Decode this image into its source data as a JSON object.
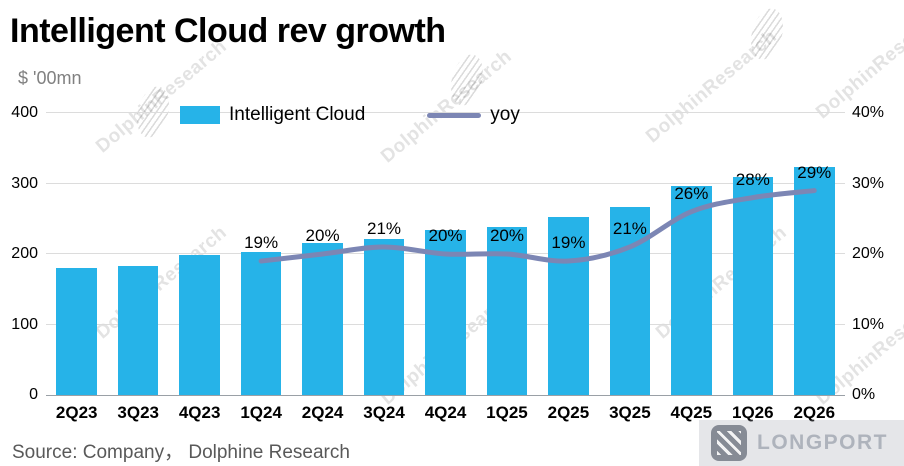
{
  "header": {
    "title": "Intelligent Cloud rev growth",
    "unit_label": "$ '00mn"
  },
  "legend": {
    "bar_label": "Intelligent Cloud",
    "line_label": "yoy"
  },
  "footer": {
    "source": "Source:  Company，  Dolphine Research",
    "brand": "LONGPORT"
  },
  "watermark": {
    "text": "DolphinResearch"
  },
  "colors": {
    "bar": "#26b3e8",
    "line": "#7c86b4",
    "grid": "#dcdcdc",
    "axis": "#9aa0a6"
  },
  "chart_data": {
    "type": "bar+line",
    "title": "Intelligent Cloud rev growth",
    "ylabel_left": "$ '00mn",
    "legend_position": "top",
    "grid": true,
    "categories": [
      "2Q23",
      "3Q23",
      "4Q23",
      "1Q24",
      "2Q24",
      "3Q24",
      "4Q24",
      "1Q25",
      "2Q25",
      "3Q25",
      "4Q25",
      "1Q26",
      "2Q26"
    ],
    "series": [
      {
        "name": "Intelligent Cloud",
        "type": "bar",
        "axis": "left",
        "values": [
          180,
          183,
          198,
          203,
          216,
          221,
          234,
          239,
          253,
          267,
          297,
          309,
          324
        ]
      },
      {
        "name": "yoy",
        "type": "line",
        "axis": "right",
        "values": [
          null,
          null,
          null,
          19,
          20,
          21,
          20,
          20,
          19,
          21,
          26,
          28,
          29
        ],
        "labels": [
          "",
          "",
          "",
          "19%",
          "20%",
          "21%",
          "20%",
          "20%",
          "19%",
          "21%",
          "26%",
          "28%",
          "29%"
        ]
      }
    ],
    "left_axis": {
      "min": 0,
      "max": 400,
      "ticks": [
        "0",
        "100",
        "200",
        "300",
        "400"
      ]
    },
    "right_axis": {
      "min": 0,
      "max": 40,
      "ticks": [
        "0%",
        "10%",
        "20%",
        "30%",
        "40%"
      ]
    }
  }
}
